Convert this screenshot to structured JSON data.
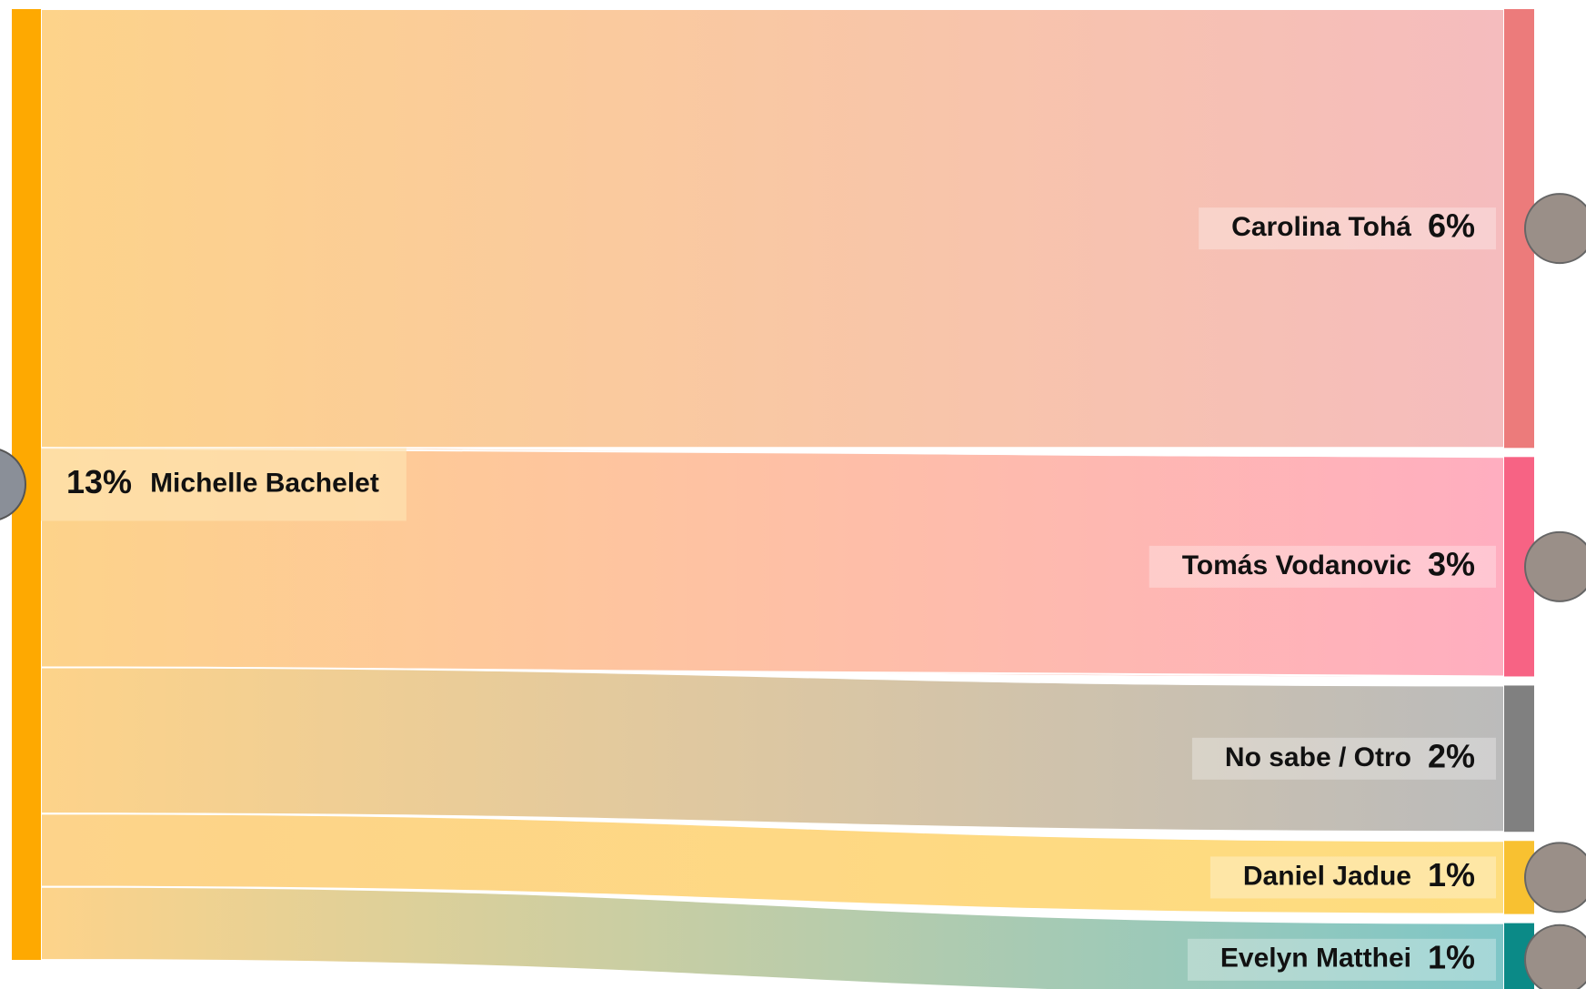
{
  "chart_data": {
    "type": "sankey",
    "source": {
      "name": "Michelle Bachelet",
      "value": 13,
      "value_label": "13%",
      "color": "#fea901",
      "link_color": "#fdd38a"
    },
    "targets": [
      {
        "name": "Carolina Tohá",
        "value": 6,
        "value_label": "6%",
        "color": "#ec7b7b",
        "link_color": "#f5bcbe"
      },
      {
        "name": "Tomás Vodanovic",
        "value": 3,
        "value_label": "3%",
        "color": "#f76384",
        "link_color": "#ffaec0"
      },
      {
        "name": "No sabe / Otro",
        "value": 2,
        "value_label": "2%",
        "color": "#808080",
        "link_color": "#bbbbbb"
      },
      {
        "name": "Daniel Jadue",
        "value": 1,
        "value_label": "1%",
        "color": "#f8c131",
        "link_color": "#fedd7e"
      },
      {
        "name": "Evelyn Matthei",
        "value": 1,
        "value_label": "1%",
        "color": "#0b8a87",
        "link_color": "#7ec6c7"
      }
    ]
  }
}
